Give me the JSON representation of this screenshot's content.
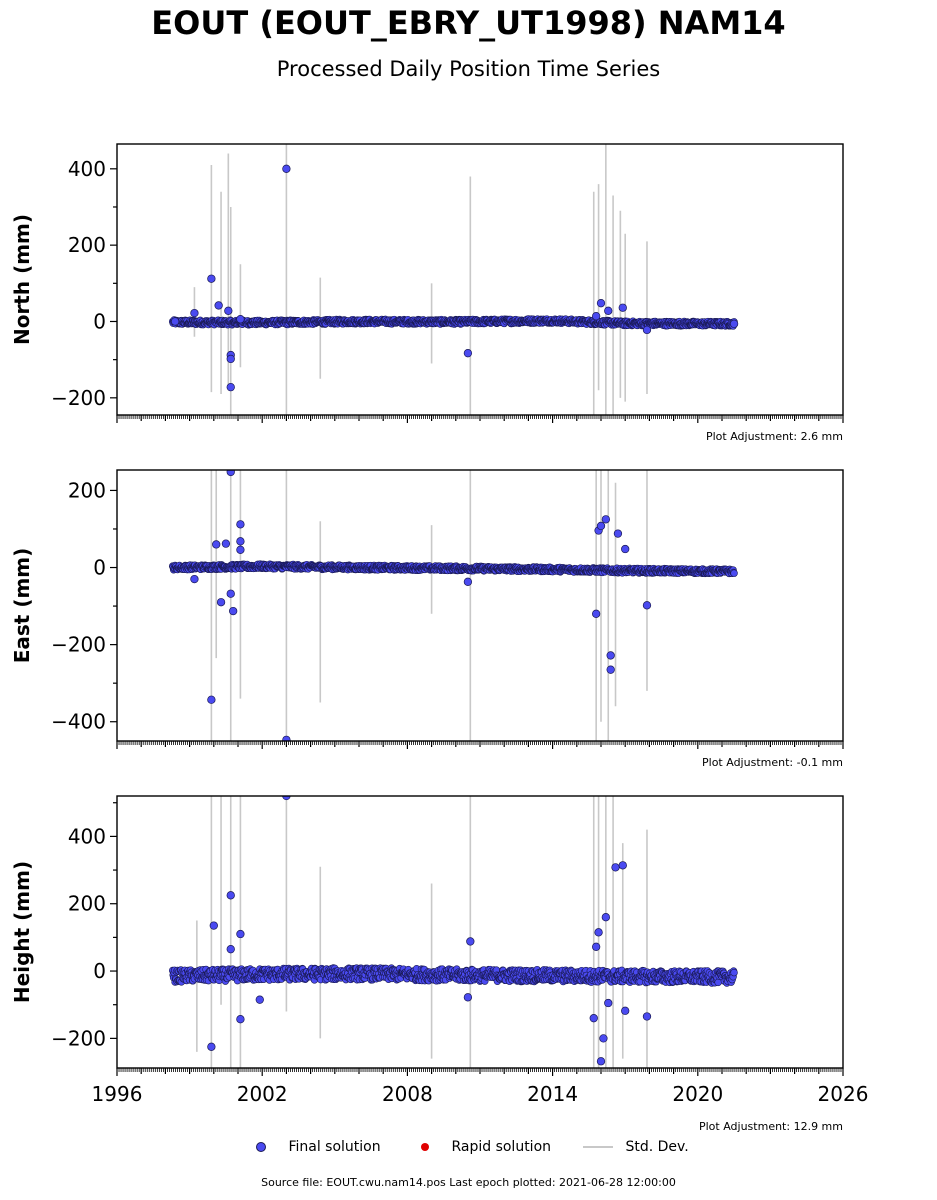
{
  "title": "EOUT (EOUT_EBRY_UT1998) NAM14",
  "subtitle": "Processed Daily Position Time Series",
  "legend": {
    "final": "Final solution",
    "rapid": "Rapid solution",
    "std": "Std. Dev."
  },
  "footer": "Source file: EOUT.cwu.nam14.pos  Last epoch plotted: 2021-06-28 12:00:00",
  "colors": {
    "final_fill": "#4a4af0",
    "final_edge": "#1a1a55",
    "rapid": "#e00000",
    "std": "#c8c8c8"
  },
  "chart_data": [
    {
      "type": "scatter",
      "ylabel": "North (mm)",
      "adjustment": "Plot Adjustment: 2.6 mm",
      "xlim": [
        1996,
        2026
      ],
      "ylim": [
        -245,
        465
      ],
      "yticks": [
        -200,
        0,
        200,
        400
      ],
      "xticks": [
        1996,
        2002,
        2008,
        2014,
        2020,
        2026
      ],
      "series": [
        {
          "name": "Final solution",
          "x": [
            1998.4,
            1999.2,
            1999.9,
            2000.2,
            2000.6,
            2000.7,
            2000.7,
            2000.7,
            2001.1,
            2003.0,
            2010.5,
            2015.8,
            2016.0,
            2016.3,
            2016.9,
            2017.9,
            2021.5
          ],
          "y": [
            0,
            22,
            112,
            42,
            28,
            -172,
            -88,
            -98,
            6,
            400,
            -83,
            14,
            48,
            28,
            36,
            -22,
            -6
          ]
        },
        {
          "name": "Rapid solution",
          "x": [],
          "y": []
        }
      ],
      "errorbars": [
        {
          "x": 1999.2,
          "y1": -40,
          "y2": 90
        },
        {
          "x": 1999.9,
          "y1": -185,
          "y2": 410
        },
        {
          "x": 2000.3,
          "y1": -190,
          "y2": 340
        },
        {
          "x": 2000.6,
          "y1": -170,
          "y2": 440
        },
        {
          "x": 2000.7,
          "y1": -245,
          "y2": 300
        },
        {
          "x": 2001.1,
          "y1": -120,
          "y2": 150
        },
        {
          "x": 2003.0,
          "y1": -245,
          "y2": 465
        },
        {
          "x": 2004.4,
          "y1": -150,
          "y2": 115
        },
        {
          "x": 2009.0,
          "y1": -110,
          "y2": 100
        },
        {
          "x": 2010.6,
          "y1": -245,
          "y2": 380
        },
        {
          "x": 2015.7,
          "y1": -245,
          "y2": 340
        },
        {
          "x": 2015.9,
          "y1": -180,
          "y2": 360
        },
        {
          "x": 2016.2,
          "y1": -245,
          "y2": 465
        },
        {
          "x": 2016.5,
          "y1": -245,
          "y2": 330
        },
        {
          "x": 2016.8,
          "y1": -200,
          "y2": 290
        },
        {
          "x": 2017.0,
          "y1": -210,
          "y2": 230
        },
        {
          "x": 2017.9,
          "y1": -190,
          "y2": 210
        }
      ],
      "band": {
        "x": [
          1998.3,
          2002,
          2006,
          2010,
          2014,
          2017,
          2021.5
        ],
        "y": [
          -2,
          -3,
          0,
          -1,
          2,
          -5,
          -6
        ],
        "spread": 6
      }
    },
    {
      "type": "scatter",
      "ylabel": "East (mm)",
      "adjustment": "Plot Adjustment: -0.1 mm",
      "xlim": [
        1996,
        2026
      ],
      "ylim": [
        -450,
        253
      ],
      "yticks": [
        -400,
        -200,
        0,
        200
      ],
      "xticks": [
        1996,
        2002,
        2008,
        2014,
        2020,
        2026
      ],
      "series": [
        {
          "name": "Final solution",
          "x": [
            1999.2,
            1999.9,
            2000.1,
            2000.3,
            2000.5,
            2000.7,
            2000.7,
            2000.8,
            2001.1,
            2001.1,
            2001.1,
            2003.0,
            2010.5,
            2015.8,
            2015.9,
            2016.0,
            2016.2,
            2016.4,
            2016.4,
            2016.7,
            2017.0,
            2017.9
          ],
          "y": [
            -30,
            -343,
            60,
            -90,
            62,
            248,
            -68,
            -113,
            112,
            68,
            46,
            -447,
            -37,
            -120,
            96,
            108,
            125,
            -265,
            -228,
            88,
            48,
            -98
          ]
        },
        {
          "name": "Rapid solution",
          "x": [],
          "y": []
        }
      ],
      "errorbars": [
        {
          "x": 1999.9,
          "y1": -450,
          "y2": 253
        },
        {
          "x": 2000.1,
          "y1": -235,
          "y2": 253
        },
        {
          "x": 2000.7,
          "y1": -450,
          "y2": 253
        },
        {
          "x": 2001.1,
          "y1": -340,
          "y2": 253
        },
        {
          "x": 2003.0,
          "y1": -450,
          "y2": 253
        },
        {
          "x": 2004.4,
          "y1": -350,
          "y2": 120
        },
        {
          "x": 2009.0,
          "y1": -120,
          "y2": 110
        },
        {
          "x": 2010.6,
          "y1": -450,
          "y2": 253
        },
        {
          "x": 2015.8,
          "y1": -450,
          "y2": 253
        },
        {
          "x": 2016.0,
          "y1": -400,
          "y2": 253
        },
        {
          "x": 2016.3,
          "y1": -450,
          "y2": 253
        },
        {
          "x": 2016.6,
          "y1": -360,
          "y2": 220
        },
        {
          "x": 2017.9,
          "y1": -320,
          "y2": 253
        }
      ],
      "band": {
        "x": [
          1998.3,
          2002,
          2006,
          2010,
          2014,
          2017,
          2021.5
        ],
        "y": [
          0,
          3,
          0,
          -2,
          -5,
          -8,
          -10
        ],
        "spread": 6
      }
    },
    {
      "type": "scatter",
      "ylabel": "Height (mm)",
      "adjustment": "Plot Adjustment: 12.9 mm",
      "xlim": [
        1996,
        2026
      ],
      "ylim": [
        -288,
        520
      ],
      "yticks": [
        -200,
        0,
        200,
        400
      ],
      "xticks": [
        1996,
        2002,
        2008,
        2014,
        2020,
        2026
      ],
      "xtick_labels": [
        "1996",
        "2002",
        "2008",
        "2014",
        "2020",
        "2026"
      ],
      "series": [
        {
          "name": "Final solution",
          "x": [
            1999.9,
            2000.0,
            2000.7,
            2000.7,
            2001.1,
            2001.1,
            2001.9,
            2003.0,
            2010.5,
            2010.6,
            2015.7,
            2015.8,
            2015.9,
            2016.0,
            2016.1,
            2016.2,
            2016.3,
            2016.6,
            2016.9,
            2017.0,
            2017.9
          ],
          "y": [
            -225,
            135,
            225,
            65,
            110,
            -143,
            -85,
            520,
            -78,
            88,
            -140,
            72,
            115,
            -268,
            -200,
            160,
            -95,
            308,
            314,
            -118,
            -135
          ]
        },
        {
          "name": "Rapid solution",
          "x": [],
          "y": []
        }
      ],
      "errorbars": [
        {
          "x": 1999.3,
          "y1": -240,
          "y2": 150
        },
        {
          "x": 1999.9,
          "y1": -288,
          "y2": 520
        },
        {
          "x": 2000.3,
          "y1": -100,
          "y2": 520
        },
        {
          "x": 2000.7,
          "y1": -288,
          "y2": 520
        },
        {
          "x": 2001.1,
          "y1": -288,
          "y2": 520
        },
        {
          "x": 2003.0,
          "y1": -120,
          "y2": 520
        },
        {
          "x": 2004.4,
          "y1": -200,
          "y2": 310
        },
        {
          "x": 2009.0,
          "y1": -260,
          "y2": 260
        },
        {
          "x": 2010.6,
          "y1": -288,
          "y2": 520
        },
        {
          "x": 2015.7,
          "y1": -288,
          "y2": 520
        },
        {
          "x": 2015.9,
          "y1": -288,
          "y2": 520
        },
        {
          "x": 2016.2,
          "y1": -288,
          "y2": 520
        },
        {
          "x": 2016.5,
          "y1": -288,
          "y2": 520
        },
        {
          "x": 2016.9,
          "y1": -260,
          "y2": 380
        },
        {
          "x": 2017.9,
          "y1": -288,
          "y2": 420
        }
      ],
      "band": {
        "x": [
          1998.3,
          2002,
          2006,
          2010,
          2014,
          2017,
          2021.5
        ],
        "y": [
          -15,
          -10,
          -8,
          -12,
          -14,
          -16,
          -18
        ],
        "spread": 18
      }
    }
  ]
}
